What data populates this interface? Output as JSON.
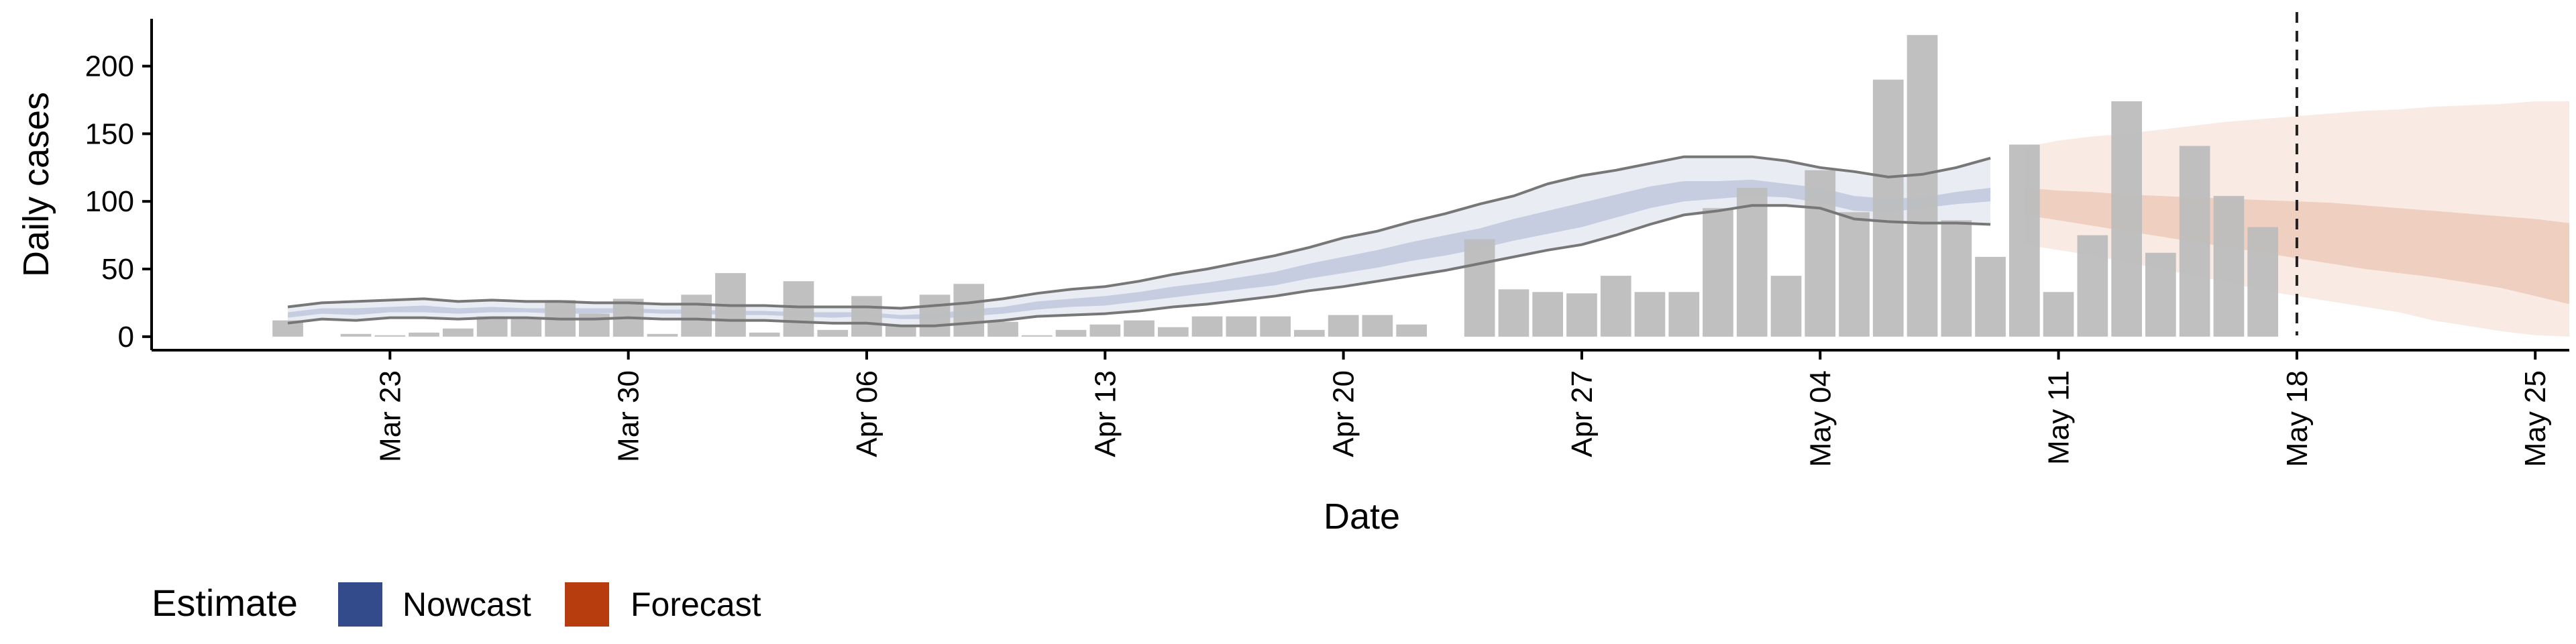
{
  "chart_data": {
    "type": "bar",
    "xlabel": "Date",
    "ylabel": "Daily cases",
    "ylim": [
      -10,
      235
    ],
    "xlim": [
      "2020-03-16",
      "2020-05-26"
    ],
    "grid": false,
    "y_ticks": [
      0,
      50,
      100,
      150,
      200
    ],
    "x_ticks": [
      {
        "date": "2020-03-23",
        "label": "Mar 23"
      },
      {
        "date": "2020-03-30",
        "label": "Mar 30"
      },
      {
        "date": "2020-04-06",
        "label": "Apr 06"
      },
      {
        "date": "2020-04-13",
        "label": "Apr 13"
      },
      {
        "date": "2020-04-20",
        "label": "Apr 20"
      },
      {
        "date": "2020-04-27",
        "label": "Apr 27"
      },
      {
        "date": "2020-05-04",
        "label": "May 04"
      },
      {
        "date": "2020-05-11",
        "label": "May 11"
      },
      {
        "date": "2020-05-18",
        "label": "May 18"
      },
      {
        "date": "2020-05-25",
        "label": "May 25"
      }
    ],
    "vline_date": "2020-05-18",
    "bars": {
      "start_date": "2020-03-20",
      "values": [
        12,
        0,
        2,
        1,
        3,
        6,
        15,
        14,
        27,
        17,
        28,
        2,
        31,
        47,
        3,
        41,
        5,
        30,
        8,
        31,
        39,
        11,
        1,
        5,
        9,
        12,
        7,
        15,
        15,
        15,
        5,
        16,
        16,
        9,
        0,
        72,
        35,
        33,
        32,
        45,
        33,
        33,
        95,
        110,
        45,
        123,
        92,
        190,
        223,
        86,
        59,
        142,
        33,
        75,
        174,
        62,
        141,
        104,
        81
      ]
    },
    "series": [
      {
        "name": "Nowcast",
        "color": "#344b8b",
        "start_date": "2020-03-20",
        "lower": [
          10,
          13,
          12,
          14,
          14,
          13,
          14,
          14,
          13,
          13,
          14,
          13,
          13,
          12,
          12,
          11,
          10,
          10,
          8,
          8,
          10,
          12,
          15,
          16,
          17,
          19,
          22,
          24,
          27,
          30,
          34,
          37,
          41,
          45,
          49,
          54,
          59,
          64,
          68,
          75,
          83,
          90,
          93,
          97,
          97,
          95,
          87,
          85,
          84,
          84,
          83
        ],
        "upper": [
          22,
          25,
          26,
          27,
          28,
          26,
          27,
          26,
          26,
          25,
          25,
          24,
          24,
          23,
          23,
          22,
          22,
          22,
          21,
          23,
          25,
          28,
          32,
          35,
          37,
          41,
          46,
          50,
          55,
          60,
          66,
          73,
          78,
          85,
          91,
          98,
          104,
          113,
          119,
          123,
          128,
          133,
          133,
          133,
          130,
          125,
          122,
          118,
          120,
          125,
          132
        ],
        "inner_lower": [
          14,
          17,
          16,
          18,
          18,
          17,
          18,
          18,
          17,
          17,
          18,
          17,
          17,
          16,
          16,
          15,
          14,
          15,
          13,
          13,
          15,
          17,
          20,
          22,
          23,
          26,
          29,
          32,
          35,
          38,
          43,
          47,
          51,
          56,
          60,
          65,
          71,
          76,
          81,
          88,
          95,
          100,
          102,
          104,
          103,
          99,
          93,
          92,
          95,
          98,
          100
        ],
        "inner_upper": [
          18,
          21,
          21,
          22,
          23,
          21,
          22,
          21,
          21,
          21,
          21,
          20,
          20,
          19,
          19,
          18,
          18,
          18,
          16,
          17,
          20,
          22,
          26,
          28,
          30,
          33,
          37,
          40,
          44,
          48,
          54,
          59,
          64,
          70,
          75,
          80,
          87,
          93,
          99,
          105,
          111,
          115,
          115,
          116,
          113,
          110,
          104,
          102,
          103,
          107,
          110
        ]
      },
      {
        "name": "Forecast",
        "color": "#b83d0e",
        "start_date": "2020-05-10",
        "lower": [
          68,
          64,
          60,
          55,
          50,
          45,
          40,
          34,
          30,
          26,
          22,
          18,
          12,
          8,
          4,
          1,
          0
        ],
        "upper": [
          140,
          145,
          148,
          150,
          153,
          156,
          159,
          161,
          163,
          165,
          167,
          168,
          170,
          171,
          172,
          174,
          174
        ],
        "inner_lower": [
          90,
          86,
          82,
          78,
          74,
          70,
          66,
          62,
          58,
          54,
          50,
          47,
          44,
          40,
          36,
          30,
          24
        ],
        "inner_upper": [
          110,
          108,
          107,
          105,
          104,
          103,
          102,
          101,
          100,
          99,
          97,
          95,
          93,
          91,
          89,
          87,
          84
        ]
      }
    ],
    "legend": {
      "title": "Estimate",
      "position": "bottom-left",
      "items": [
        {
          "label": "Nowcast",
          "color": "#344b8b"
        },
        {
          "label": "Forecast",
          "color": "#b83d0e"
        }
      ]
    },
    "colors": {
      "bar": "#bdbdbd",
      "nowcast_outer": "#eaecf3",
      "nowcast_inner": "#c6cde0",
      "forecast_outer": "#f9ebe4",
      "forecast_inner": "#efcfc0",
      "ribbon_edge": "#777777",
      "axis": "#000000"
    }
  }
}
